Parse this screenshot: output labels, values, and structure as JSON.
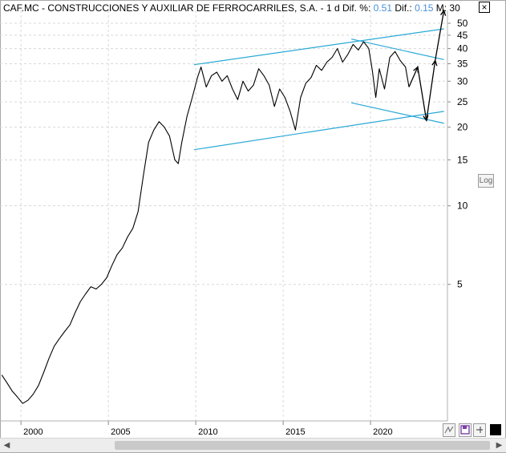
{
  "window": {
    "title_prefix": "CAF.MC - CONSTRUCCIONES Y AUXILIAR DE FERROCARRILES, S.A. -  1 d  Dif. %:",
    "dif_pct_value": "0.51",
    "dif_label": "Dif.:",
    "dif_value": "0.15",
    "m_label": "M: 30",
    "close_glyph": "×"
  },
  "controls": {
    "log_label": "Log",
    "scroll_left_glyph": "◀",
    "scroll_right_glyph": "▶",
    "tool_icons": [
      "zigzag-icon",
      "save-icon",
      "pin-icon",
      "square-icon"
    ]
  },
  "colors": {
    "price": "#000000",
    "channel": "#29a8d6",
    "grid": "#d8d8d8",
    "accent": "#4a90d9"
  },
  "chart_data": {
    "type": "line",
    "scale": "log",
    "xlim": [
      1998.8,
      2024.4
    ],
    "ylim": [
      1.5,
      56
    ],
    "y_ticks": [
      5,
      10,
      15,
      20,
      25,
      30,
      35,
      40,
      45,
      50
    ],
    "x_ticks": [
      2000,
      2005,
      2010,
      2015,
      2020
    ],
    "grid": true,
    "series": [
      {
        "x": [
          1998.9,
          1999.2,
          1999.5,
          1999.8,
          2000.1,
          2000.4,
          2000.7,
          2001.0,
          2001.3,
          2001.6,
          2001.9,
          2002.2,
          2002.5,
          2002.8,
          2003.1,
          2003.4,
          2003.7,
          2004.0,
          2004.3,
          2004.6,
          2004.9,
          2005.2,
          2005.5,
          2005.8,
          2006.1,
          2006.4,
          2006.7,
          2007.0,
          2007.3,
          2007.6,
          2007.9,
          2008.2,
          2008.5,
          2008.8,
          2009.0,
          2009.2,
          2009.5,
          2009.8,
          2010.1,
          2010.3,
          2010.6,
          2010.9,
          2011.2,
          2011.5,
          2011.8,
          2012.1,
          2012.4,
          2012.7,
          2013.0,
          2013.3,
          2013.6,
          2013.9,
          2014.2,
          2014.5,
          2014.8,
          2015.1,
          2015.4,
          2015.7,
          2016.0,
          2016.3,
          2016.6,
          2016.9,
          2017.2,
          2017.5,
          2017.8,
          2018.1,
          2018.4,
          2018.7,
          2019.0,
          2019.3,
          2019.6,
          2019.9,
          2020.1,
          2020.3,
          2020.5,
          2020.8,
          2021.1,
          2021.4,
          2021.7,
          2022.0,
          2022.2
        ],
        "y": [
          2.25,
          2.1,
          1.95,
          1.85,
          1.75,
          1.8,
          1.9,
          2.05,
          2.3,
          2.6,
          2.9,
          3.1,
          3.3,
          3.5,
          3.9,
          4.3,
          4.6,
          4.9,
          4.8,
          5.0,
          5.3,
          5.9,
          6.5,
          6.9,
          7.6,
          8.2,
          9.5,
          13.0,
          17.5,
          19.5,
          21.0,
          20.0,
          18.5,
          15.0,
          14.5,
          17.5,
          22.0,
          26.0,
          31.0,
          34.0,
          28.5,
          31.5,
          32.5,
          30.0,
          31.5,
          28.0,
          25.5,
          30.0,
          27.5,
          29.0,
          33.5,
          31.5,
          29.0,
          24.0,
          28.0,
          26.0,
          23.0,
          19.5,
          26.0,
          29.5,
          31.0,
          34.5,
          33.0,
          35.5,
          37.0,
          40.0,
          35.5,
          38.0,
          41.5,
          39.5,
          42.5,
          40.0,
          33.0,
          26.0,
          33.5,
          28.0,
          37.0,
          39.0,
          36.0,
          34.0,
          28.5
        ]
      }
    ],
    "trendlines": [
      {
        "x": [
          2009.9,
          2024.2
        ],
        "y": [
          16.4,
          23.0
        ]
      },
      {
        "x": [
          2009.9,
          2024.2
        ],
        "y": [
          34.7,
          47.6
        ]
      },
      {
        "x": [
          2018.9,
          2024.2
        ],
        "y": [
          43.5,
          36.3
        ]
      },
      {
        "x": [
          2018.9,
          2024.2
        ],
        "y": [
          24.8,
          20.7
        ]
      }
    ],
    "projection": {
      "x": [
        2022.2,
        2022.7,
        2023.2,
        2023.7,
        2024.2
      ],
      "y": [
        28.5,
        34.0,
        21.2,
        36.0,
        56.0
      ]
    }
  }
}
